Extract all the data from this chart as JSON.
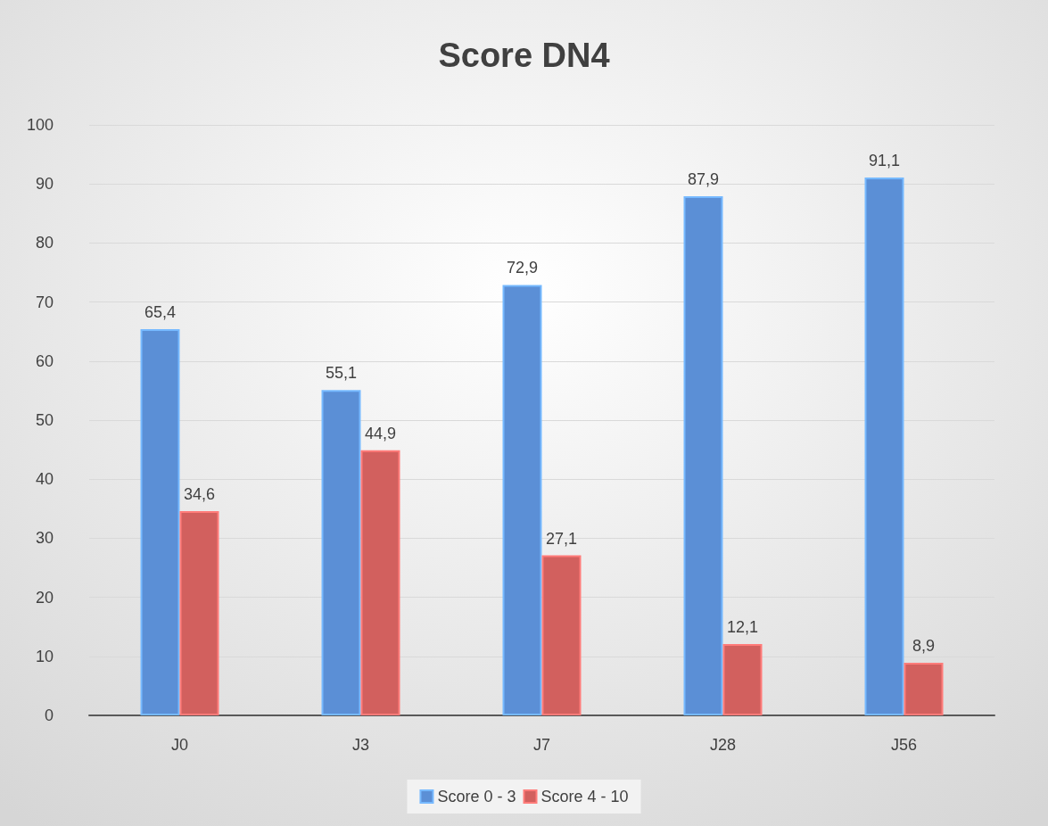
{
  "chart_data": {
    "type": "bar",
    "title": "Score DN4",
    "categories": [
      "J0",
      "J3",
      "J7",
      "J28",
      "J56"
    ],
    "series": [
      {
        "name": "Score 0 - 3",
        "color": "#5b8fd6",
        "values": [
          65.4,
          55.1,
          72.9,
          87.9,
          91.1
        ],
        "value_labels": [
          "65,4",
          "55,1",
          "72,9",
          "87,9",
          "91,1"
        ]
      },
      {
        "name": "Score 4 - 10",
        "color": "#d2605e",
        "values": [
          34.6,
          44.9,
          27.1,
          12.1,
          8.9
        ],
        "value_labels": [
          "34,6",
          "44,9",
          "27,1",
          "12,1",
          "8,9"
        ]
      }
    ],
    "ylim": [
      0,
      100
    ],
    "yticks": [
      0,
      10,
      20,
      30,
      40,
      50,
      60,
      70,
      80,
      90,
      100
    ],
    "grid": "y",
    "legend": "bottom"
  }
}
